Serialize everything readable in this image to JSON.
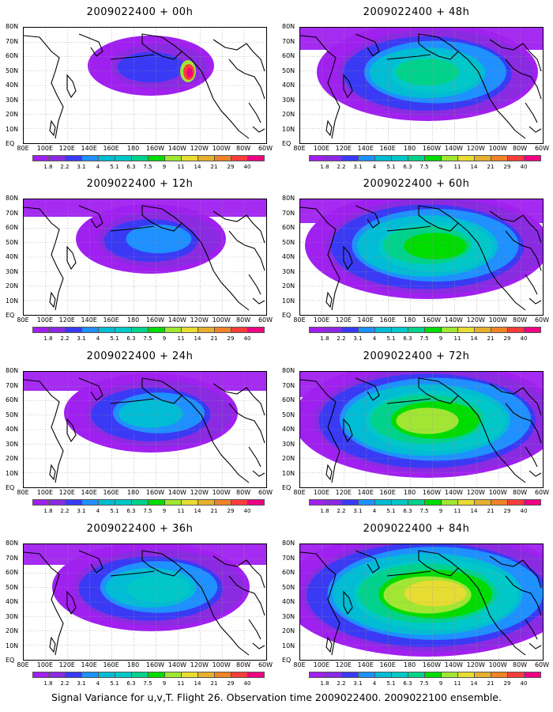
{
  "panels": [
    {
      "title": "2009022400 + 00h",
      "intensity": 0
    },
    {
      "title": "2009022400 + 48h",
      "intensity": 4
    },
    {
      "title": "2009022400 + 12h",
      "intensity": 1
    },
    {
      "title": "2009022400 + 60h",
      "intensity": 5
    },
    {
      "title": "2009022400 + 24h",
      "intensity": 2
    },
    {
      "title": "2009022400 + 72h",
      "intensity": 6
    },
    {
      "title": "2009022400 + 36h",
      "intensity": 3
    },
    {
      "title": "2009022400 + 84h",
      "intensity": 7
    }
  ],
  "lat_labels": [
    "80N",
    "70N",
    "60N",
    "50N",
    "40N",
    "30N",
    "20N",
    "10N",
    "EQ"
  ],
  "lon_labels": [
    "80E",
    "100E",
    "120E",
    "140E",
    "160E",
    "180",
    "160W",
    "140W",
    "120W",
    "100W",
    "80W",
    "60W"
  ],
  "colorbar": {
    "labels": [
      "1.8",
      "2.2",
      "3.1",
      "4",
      "5.1",
      "6.3",
      "7.5",
      "9",
      "11",
      "14",
      "21",
      "29",
      "40"
    ],
    "colors": [
      "#a020f0",
      "#8a2be2",
      "#3a3af5",
      "#1e90ff",
      "#00bcd4",
      "#00c8c8",
      "#00d28c",
      "#00dc00",
      "#a0e632",
      "#e6dc32",
      "#e6af2d",
      "#f08228",
      "#fa3c3c",
      "#f00082"
    ]
  },
  "caption": "Signal Variance for u,v,T. Flight 26. Observation time 2009022400. 2009022100 ensemble."
}
